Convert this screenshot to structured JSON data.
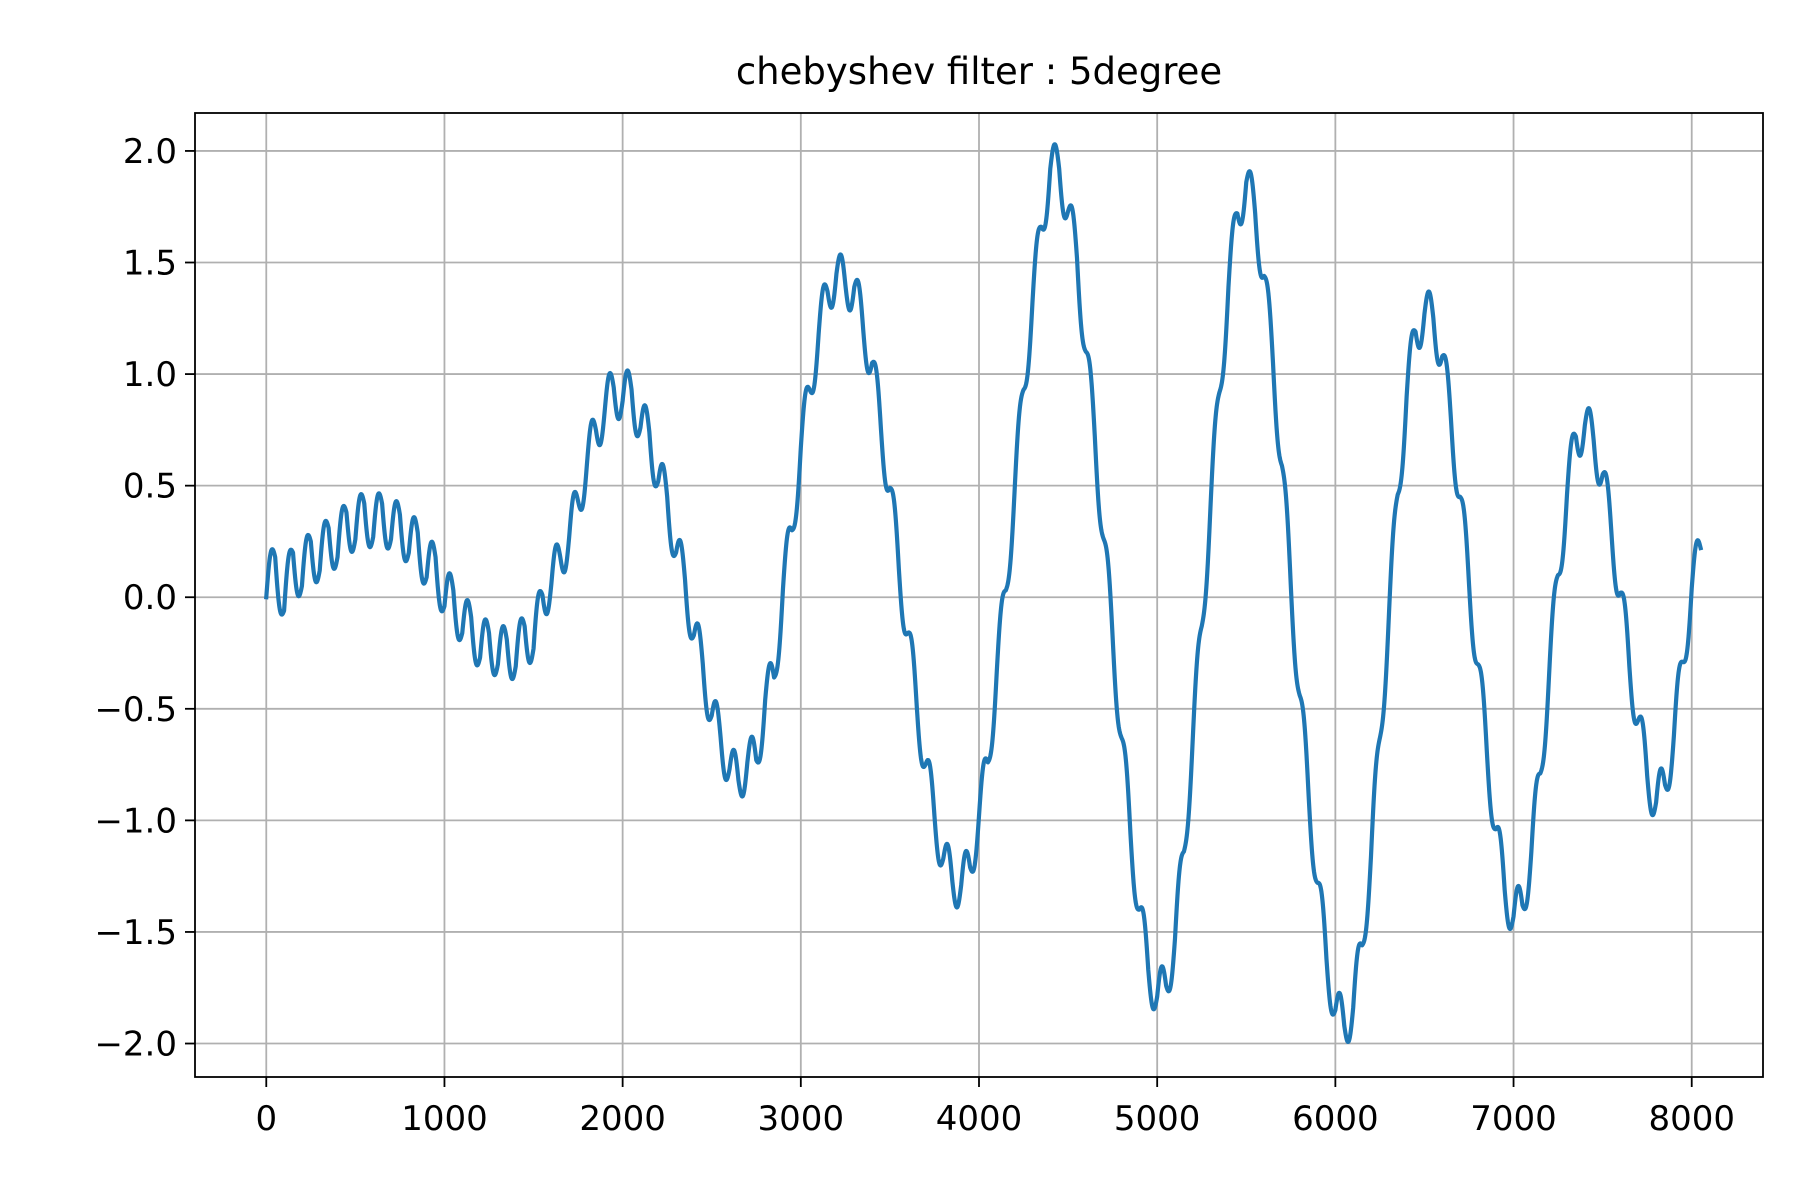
{
  "chart_data": {
    "type": "line",
    "title": "chebyshev filter : 5degree",
    "xlabel": "",
    "ylabel": "",
    "xlim": [
      -400,
      8400
    ],
    "ylim": [
      -2.15,
      2.17
    ],
    "x_ticks": [
      0,
      1000,
      2000,
      3000,
      4000,
      5000,
      6000,
      7000,
      8000
    ],
    "x_tick_labels": [
      "0",
      "1000",
      "2000",
      "3000",
      "4000",
      "5000",
      "6000",
      "7000",
      "8000"
    ],
    "y_ticks": [
      2.0,
      1.5,
      1.0,
      0.5,
      0.0,
      -0.5,
      -1.0,
      -1.5,
      -2.0
    ],
    "y_tick_labels": [
      "2.0",
      "1.5",
      "1.0",
      "0.5",
      "0.0",
      "−0.5",
      "−1.0",
      "−1.5",
      "−2.0"
    ],
    "grid": true,
    "legend": "none",
    "colors": {
      "line": "#1f77b4",
      "grid": "#b0b0b0",
      "axes": "#000000"
    },
    "series": [
      {
        "sampling": "x from 0 to 8000, step 50 (161 samples)",
        "x_start": 0,
        "x_step": 50,
        "y": [
          0.0,
          0.18,
          -0.06,
          0.2,
          0.05,
          0.25,
          0.12,
          0.31,
          0.18,
          0.38,
          0.26,
          0.42,
          0.27,
          0.42,
          0.26,
          0.37,
          0.2,
          0.29,
          0.09,
          0.18,
          -0.04,
          0.03,
          -0.16,
          -0.09,
          -0.27,
          -0.16,
          -0.3,
          -0.19,
          -0.31,
          -0.13,
          -0.23,
          0.01,
          0.06,
          0.18,
          0.27,
          0.43,
          0.6,
          0.75,
          0.84,
          0.94,
          0.88,
          0.93,
          0.76,
          0.74,
          0.52,
          0.45,
          0.2,
          0.08,
          -0.17,
          -0.3,
          -0.53,
          -0.63,
          -0.77,
          -0.82,
          -0.74,
          -0.73,
          -0.46,
          -0.36,
          0.04,
          0.3,
          0.67,
          0.93,
          1.18,
          1.37,
          1.45,
          1.4,
          1.39,
          1.2,
          1.05,
          0.75,
          0.49,
          0.13,
          -0.16,
          -0.48,
          -0.75,
          -0.98,
          -1.17,
          -1.27,
          -1.29,
          -1.21,
          -0.98,
          -0.74,
          -0.33,
          0.03,
          0.48,
          0.93,
          1.32,
          1.66,
          1.92,
          1.92,
          1.73,
          1.52,
          1.1,
          0.72,
          0.26,
          -0.18,
          -0.63,
          -1.06,
          -1.4,
          -1.67,
          -1.79,
          -1.74,
          -1.53,
          -1.14,
          -0.63,
          -0.13,
          0.42,
          0.92,
          1.39,
          1.72,
          1.86,
          1.72,
          1.44,
          1.05,
          0.59,
          0.05,
          -0.44,
          -0.89,
          -1.28,
          -1.62,
          -1.85,
          -1.92,
          -1.84,
          -1.56,
          -1.16,
          -0.63,
          -0.09,
          0.46,
          0.9,
          1.19,
          1.27,
          1.25,
          1.08,
          0.78,
          0.45,
          0.06,
          -0.3,
          -0.69,
          -1.04,
          -1.31,
          -1.43,
          -1.38,
          -1.14,
          -0.79,
          -0.34,
          0.1,
          0.46,
          0.72,
          0.77,
          0.7,
          0.55,
          0.28,
          0.02,
          -0.31,
          -0.55,
          -0.8,
          -0.92,
          -0.84,
          -0.62,
          -0.29,
          0.04,
          0.22
        ]
      }
    ],
    "ripple": {
      "amplitude": 0.11,
      "period": 100
    }
  }
}
